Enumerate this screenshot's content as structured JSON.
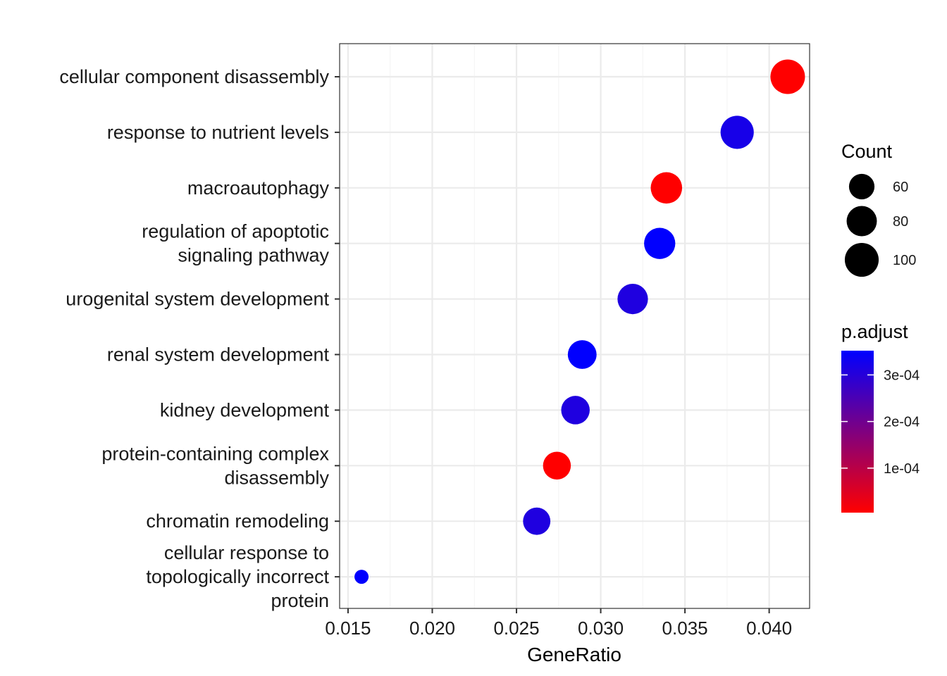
{
  "chart_data": {
    "type": "scatter",
    "xlabel": "GeneRatio",
    "xlim": [
      0.0145,
      0.0424
    ],
    "x_ticks": [
      0.015,
      0.02,
      0.025,
      0.03,
      0.035,
      0.04
    ],
    "x_tick_labels": [
      "0.015",
      "0.020",
      "0.025",
      "0.030",
      "0.035",
      "0.040"
    ],
    "grid": true,
    "points": [
      {
        "category": [
          "cellular component disassembly"
        ],
        "x": 0.0411,
        "count": 104,
        "p_adjust": 5e-06
      },
      {
        "category": [
          "response to nutrient levels"
        ],
        "x": 0.0381,
        "count": 96,
        "p_adjust": 0.00032
      },
      {
        "category": [
          "macroautophagy"
        ],
        "x": 0.0339,
        "count": 86,
        "p_adjust": 5e-06
      },
      {
        "category": [
          "regulation of apoptotic",
          "signaling pathway"
        ],
        "x": 0.0335,
        "count": 85,
        "p_adjust": 0.00035
      },
      {
        "category": [
          "urogenital system development"
        ],
        "x": 0.0319,
        "count": 81,
        "p_adjust": 0.00031
      },
      {
        "category": [
          "renal system development"
        ],
        "x": 0.0289,
        "count": 73,
        "p_adjust": 0.00035
      },
      {
        "category": [
          "kidney development"
        ],
        "x": 0.0285,
        "count": 72,
        "p_adjust": 0.00031
      },
      {
        "category": [
          "protein-containing complex",
          "disassembly"
        ],
        "x": 0.0274,
        "count": 69,
        "p_adjust": 5e-06
      },
      {
        "category": [
          "chromatin remodeling"
        ],
        "x": 0.0262,
        "count": 67,
        "p_adjust": 0.00031
      },
      {
        "category": [
          "cellular response to",
          "topologically incorrect",
          "protein"
        ],
        "x": 0.0158,
        "count": 40,
        "p_adjust": 0.00035
      }
    ],
    "legend_size": {
      "title": "Count",
      "values": [
        60,
        80,
        100
      ],
      "labels": [
        "60",
        "80",
        "100"
      ],
      "placement": "right"
    },
    "legend_color": {
      "title": "p.adjust",
      "range": [
        4.5e-06,
        0.000352
      ],
      "ticks": [
        0.0001,
        0.0002,
        0.0003
      ],
      "tick_labels": [
        "1e-04",
        "2e-04",
        "3e-04"
      ],
      "low_color": "#ff0000",
      "high_color": "#0000ff",
      "placement": "right"
    },
    "colors": {
      "panel_border": "#333333",
      "grid_major": "#ebebeb",
      "grid_minor": "#f5f5f5"
    }
  }
}
